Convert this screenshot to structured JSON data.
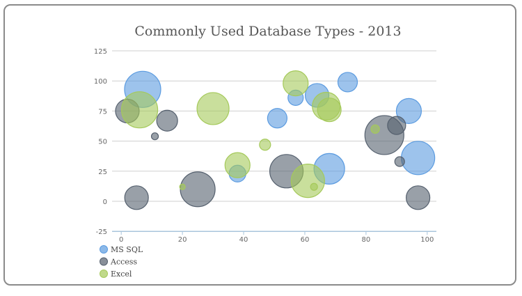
{
  "chart_data": {
    "type": "scatter",
    "subtype": "bubble",
    "title": "Commonly Used Database Types - 2013",
    "xlabel": "",
    "ylabel": "",
    "xlim": [
      -3,
      103
    ],
    "ylim": [
      -25,
      125
    ],
    "xticks": [
      "0",
      "20",
      "40",
      "60",
      "80",
      "100"
    ],
    "yticks": [
      "-25",
      "0",
      "25",
      "50",
      "75",
      "100",
      "125"
    ],
    "grid": "horizontal",
    "legend_position": "bottom-left",
    "series": [
      {
        "name": "MS SQL",
        "color": "#5b9be0",
        "points": [
          {
            "x": 7,
            "y": 93,
            "z": 26
          },
          {
            "x": 38,
            "y": 23,
            "z": 12
          },
          {
            "x": 51,
            "y": 69,
            "z": 14
          },
          {
            "x": 57,
            "y": 86,
            "z": 11
          },
          {
            "x": 64,
            "y": 88,
            "z": 17
          },
          {
            "x": 68,
            "y": 27,
            "z": 22
          },
          {
            "x": 74,
            "y": 99,
            "z": 14
          },
          {
            "x": 94,
            "y": 75,
            "z": 18
          },
          {
            "x": 97,
            "y": 36,
            "z": 24
          }
        ]
      },
      {
        "name": "Access",
        "color": "#55606e",
        "points": [
          {
            "x": 2,
            "y": 75,
            "z": 17
          },
          {
            "x": 5,
            "y": 3,
            "z": 17
          },
          {
            "x": 11,
            "y": 54,
            "z": 5
          },
          {
            "x": 15,
            "y": 67,
            "z": 15
          },
          {
            "x": 25,
            "y": 10,
            "z": 25
          },
          {
            "x": 54,
            "y": 25,
            "z": 24
          },
          {
            "x": 86,
            "y": 55,
            "z": 28
          },
          {
            "x": 90,
            "y": 63,
            "z": 13
          },
          {
            "x": 91,
            "y": 33,
            "z": 7
          },
          {
            "x": 97,
            "y": 3,
            "z": 17
          }
        ]
      },
      {
        "name": "Excel",
        "color": "#a5c95a",
        "points": [
          {
            "x": 6,
            "y": 76,
            "z": 26
          },
          {
            "x": 20,
            "y": 12,
            "z": 4
          },
          {
            "x": 30,
            "y": 77,
            "z": 23
          },
          {
            "x": 38,
            "y": 30,
            "z": 18
          },
          {
            "x": 47,
            "y": 47,
            "z": 8
          },
          {
            "x": 57,
            "y": 98,
            "z": 18
          },
          {
            "x": 61,
            "y": 17,
            "z": 24
          },
          {
            "x": 63,
            "y": 12,
            "z": 5
          },
          {
            "x": 67,
            "y": 79,
            "z": 20
          },
          {
            "x": 68,
            "y": 76,
            "z": 17
          },
          {
            "x": 83,
            "y": 60,
            "z": 6
          }
        ]
      }
    ]
  }
}
